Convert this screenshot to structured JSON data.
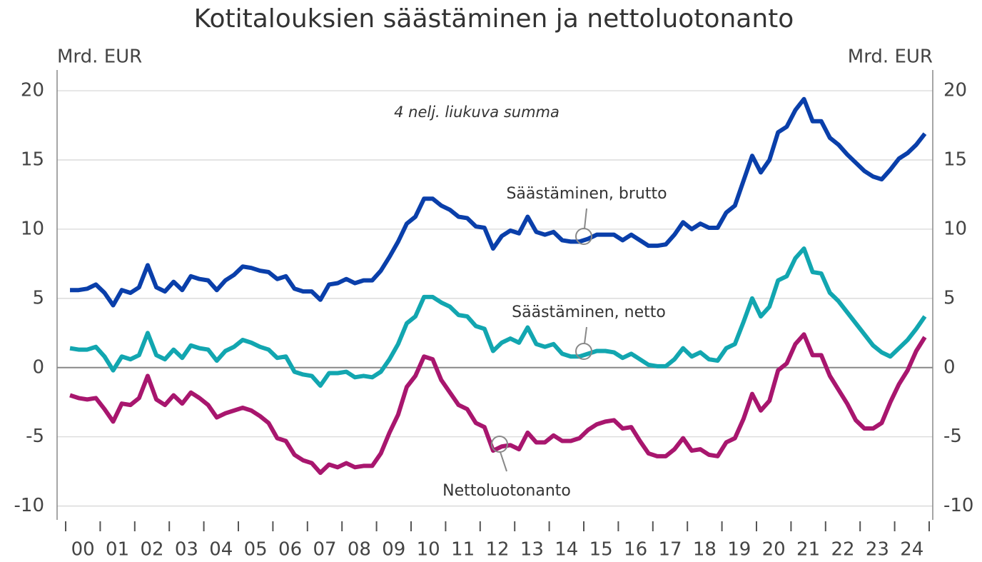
{
  "chart_data": {
    "type": "line",
    "title": "Kotitalouksien säästäminen ja nettoluotonanto",
    "y_label": "Mrd. EUR",
    "y2_label": "Mrd. EUR",
    "annotation": "4 nelj. liukuva summa",
    "categories": [
      "00",
      null,
      null,
      null,
      "01",
      null,
      null,
      null,
      "02",
      null,
      null,
      null,
      "03",
      null,
      null,
      null,
      "04",
      null,
      null,
      null,
      "05",
      null,
      null,
      null,
      "06",
      null,
      null,
      null,
      "07",
      null,
      null,
      null,
      "08",
      null,
      null,
      null,
      "09",
      null,
      null,
      null,
      "10",
      null,
      null,
      null,
      "11",
      null,
      null,
      null,
      "12",
      null,
      null,
      null,
      "13",
      null,
      null,
      null,
      "14",
      null,
      null,
      null,
      "15",
      null,
      null,
      null,
      "16",
      null,
      null,
      null,
      "17",
      null,
      null,
      null,
      "18",
      null,
      null,
      null,
      "19",
      null,
      null,
      null,
      "20",
      null,
      null,
      null,
      "21",
      null,
      null,
      null,
      "22",
      null,
      null,
      null,
      "23",
      null,
      null,
      null,
      "24",
      null,
      null,
      null
    ],
    "series": [
      {
        "name": "Säästäminen, brutto",
        "color": "#0a3faa",
        "values": [
          5.6,
          5.6,
          5.7,
          6.0,
          5.4,
          4.5,
          5.6,
          5.4,
          5.8,
          7.4,
          5.8,
          5.5,
          6.2,
          5.6,
          6.6,
          6.4,
          6.3,
          5.6,
          6.3,
          6.7,
          7.3,
          7.2,
          7.0,
          6.9,
          6.4,
          6.6,
          5.7,
          5.5,
          5.5,
          4.9,
          6.0,
          6.1,
          6.4,
          6.1,
          6.3,
          6.3,
          7.0,
          8.0,
          9.1,
          10.4,
          10.9,
          12.2,
          12.2,
          11.7,
          11.4,
          10.9,
          10.8,
          10.2,
          10.1,
          8.6,
          9.5,
          9.9,
          9.7,
          10.9,
          9.8,
          9.6,
          9.8,
          9.2,
          9.1,
          9.1,
          9.3,
          9.6,
          9.6,
          9.6,
          9.2,
          9.6,
          9.2,
          8.8,
          8.8,
          8.9,
          9.6,
          10.5,
          10.0,
          10.4,
          10.1,
          10.1,
          11.2,
          11.7,
          13.5,
          15.3,
          14.1,
          15.0,
          17.0,
          17.4,
          18.6,
          19.4,
          17.8,
          17.8,
          16.6,
          16.1,
          15.4,
          14.8,
          14.2,
          13.8,
          13.6,
          14.3,
          15.1,
          15.5,
          16.1,
          16.9
        ]
      },
      {
        "name": "Säästäminen, netto",
        "color": "#12a6b0",
        "values": [
          1.4,
          1.3,
          1.3,
          1.5,
          0.8,
          -0.2,
          0.8,
          0.6,
          0.9,
          2.5,
          0.9,
          0.6,
          1.3,
          0.7,
          1.6,
          1.4,
          1.3,
          0.5,
          1.2,
          1.5,
          2.0,
          1.8,
          1.5,
          1.3,
          0.7,
          0.8,
          -0.3,
          -0.5,
          -0.6,
          -1.3,
          -0.4,
          -0.4,
          -0.3,
          -0.7,
          -0.6,
          -0.7,
          -0.3,
          0.6,
          1.7,
          3.2,
          3.7,
          5.1,
          5.1,
          4.7,
          4.4,
          3.8,
          3.7,
          3.0,
          2.8,
          1.2,
          1.8,
          2.1,
          1.8,
          2.9,
          1.7,
          1.5,
          1.7,
          1.0,
          0.8,
          0.8,
          1.0,
          1.2,
          1.2,
          1.1,
          0.7,
          1.0,
          0.6,
          0.2,
          0.1,
          0.1,
          0.6,
          1.4,
          0.8,
          1.1,
          0.6,
          0.5,
          1.4,
          1.7,
          3.3,
          5.0,
          3.7,
          4.4,
          6.3,
          6.6,
          7.9,
          8.6,
          6.9,
          6.8,
          5.4,
          4.8,
          4.0,
          3.2,
          2.4,
          1.6,
          1.1,
          0.8,
          1.4,
          2.0,
          2.8,
          3.7
        ]
      },
      {
        "name": "Nettoluotonanto",
        "color": "#a8166e",
        "values": [
          -2.0,
          -2.2,
          -2.3,
          -2.2,
          -3.0,
          -3.9,
          -2.6,
          -2.7,
          -2.2,
          -0.6,
          -2.3,
          -2.7,
          -2.0,
          -2.6,
          -1.8,
          -2.2,
          -2.7,
          -3.6,
          -3.3,
          -3.1,
          -2.9,
          -3.1,
          -3.5,
          -4.0,
          -5.1,
          -5.3,
          -6.3,
          -6.7,
          -6.9,
          -7.6,
          -7.0,
          -7.2,
          -6.9,
          -7.2,
          -7.1,
          -7.1,
          -6.2,
          -4.7,
          -3.4,
          -1.4,
          -0.6,
          0.8,
          0.6,
          -0.9,
          -1.8,
          -2.7,
          -3.0,
          -4.0,
          -4.3,
          -6.0,
          -5.7,
          -5.6,
          -5.9,
          -4.7,
          -5.4,
          -5.4,
          -4.9,
          -5.3,
          -5.3,
          -5.1,
          -4.5,
          -4.1,
          -3.9,
          -3.8,
          -4.4,
          -4.3,
          -5.3,
          -6.2,
          -6.4,
          -6.4,
          -5.9,
          -5.1,
          -6.0,
          -5.9,
          -6.3,
          -6.4,
          -5.4,
          -5.1,
          -3.7,
          -1.9,
          -3.1,
          -2.4,
          -0.2,
          0.3,
          1.7,
          2.4,
          0.9,
          0.9,
          -0.6,
          -1.6,
          -2.6,
          -3.8,
          -4.4,
          -4.4,
          -4.0,
          -2.5,
          -1.2,
          -0.2,
          1.2,
          2.2
        ]
      }
    ],
    "ylim": [
      -11,
      21.5
    ],
    "yticks": [
      -10,
      -5,
      0,
      5,
      10,
      15,
      20
    ],
    "y2lim": [
      -11,
      21.5
    ],
    "y2ticks": [
      -10,
      -5,
      0,
      5,
      10,
      15,
      20
    ],
    "grid": true
  }
}
